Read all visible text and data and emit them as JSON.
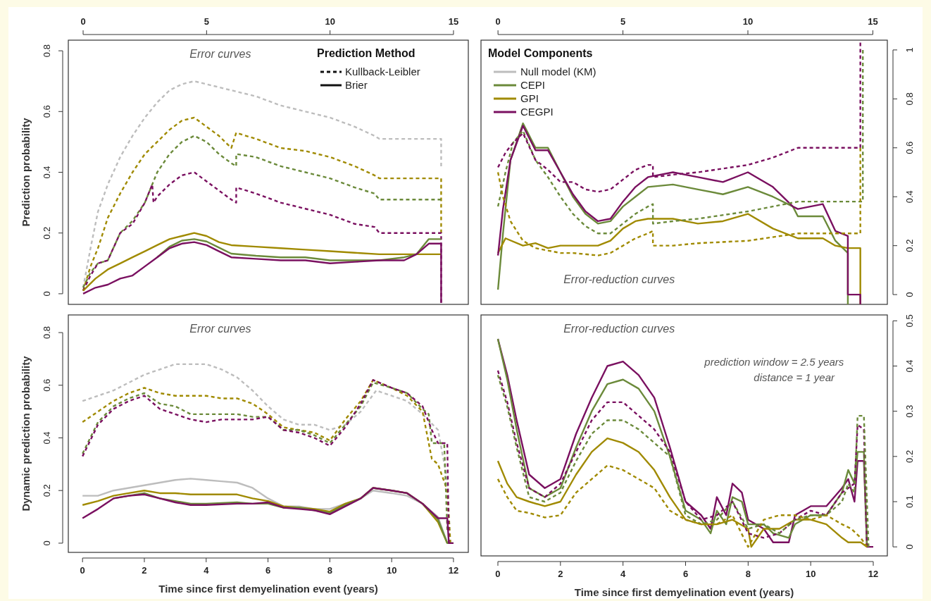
{
  "chart_data": [
    {
      "type": "line",
      "xlim": [
        -0.6,
        15.6
      ],
      "xticks": [
        0,
        5,
        10,
        15
      ],
      "ylim": [
        -0.035,
        0.835
      ],
      "yticks": [
        0,
        0.2,
        0.4,
        0.6,
        0.8
      ],
      "ylabel": "Prediction probability",
      "legend_title": "Prediction Method",
      "annotations": [
        "Error curves",
        "Kullback-Leibler",
        "Brier"
      ],
      "series": [
        {
          "color": "#bdbdbd",
          "line_style": "dashed",
          "x": [
            0,
            0.3,
            0.6,
            1,
            1.5,
            2,
            2.5,
            3,
            3.5,
            4,
            4.5,
            5,
            5.5,
            6,
            7,
            8,
            9,
            10,
            11,
            11.8,
            12,
            14.5,
            14.5
          ],
          "values": [
            0.02,
            0.15,
            0.27,
            0.36,
            0.45,
            0.52,
            0.58,
            0.63,
            0.67,
            0.69,
            0.7,
            0.69,
            0.68,
            0.67,
            0.65,
            0.62,
            0.6,
            0.58,
            0.55,
            0.52,
            0.51,
            0.51,
            0.42
          ]
        },
        {
          "color": "#a08a00",
          "line_style": "dashed",
          "x": [
            0,
            0.3,
            0.6,
            1,
            1.5,
            2,
            2.5,
            3,
            3.5,
            4,
            4.5,
            5,
            5.5,
            6,
            6.2,
            7,
            8,
            9,
            10,
            11,
            11.8,
            12,
            14.5,
            14.5
          ],
          "values": [
            0.01,
            0.09,
            0.15,
            0.25,
            0.33,
            0.4,
            0.46,
            0.5,
            0.54,
            0.57,
            0.58,
            0.55,
            0.52,
            0.48,
            0.53,
            0.51,
            0.48,
            0.47,
            0.45,
            0.42,
            0.39,
            0.38,
            0.38,
            0.2
          ]
        },
        {
          "color": "#6b8a3a",
          "line_style": "dashed",
          "x": [
            0,
            0.3,
            0.6,
            1,
            1.5,
            2,
            2.5,
            3,
            3.5,
            4,
            4.5,
            5,
            5.5,
            6,
            6.2,
            6.2,
            7,
            8,
            9,
            10,
            11,
            11.8,
            12,
            14.5
          ],
          "values": [
            0.02,
            0.07,
            0.1,
            0.11,
            0.2,
            0.24,
            0.3,
            0.4,
            0.46,
            0.5,
            0.52,
            0.5,
            0.46,
            0.43,
            0.42,
            0.46,
            0.45,
            0.42,
            0.4,
            0.38,
            0.35,
            0.33,
            0.31,
            0.31
          ]
        },
        {
          "color": "#7a1060",
          "line_style": "dashed",
          "x": [
            0,
            0.3,
            0.6,
            1,
            1.5,
            2,
            2.5,
            2.8,
            2.85,
            3,
            3.5,
            4,
            4.5,
            5,
            5.5,
            6,
            6.2,
            6.2,
            7,
            8,
            9,
            10,
            11,
            11.8,
            12,
            14.5,
            14.5
          ],
          "values": [
            0.01,
            0.06,
            0.1,
            0.11,
            0.2,
            0.23,
            0.3,
            0.36,
            0.3,
            0.32,
            0.36,
            0.39,
            0.4,
            0.37,
            0.34,
            0.31,
            0.3,
            0.35,
            0.33,
            0.3,
            0.28,
            0.26,
            0.23,
            0.22,
            0.2,
            0.2,
            -0.03
          ]
        },
        {
          "color": "#a08a00",
          "line_style": "solid",
          "x": [
            0,
            0.5,
            1,
            1.5,
            2,
            2.5,
            3,
            3.5,
            4,
            4.5,
            5,
            5.5,
            6,
            7,
            8,
            9,
            10,
            11,
            12,
            13,
            14.5
          ],
          "values": [
            0.01,
            0.05,
            0.08,
            0.1,
            0.12,
            0.14,
            0.16,
            0.18,
            0.19,
            0.2,
            0.19,
            0.17,
            0.16,
            0.155,
            0.15,
            0.145,
            0.14,
            0.135,
            0.13,
            0.13,
            0.13
          ]
        },
        {
          "color": "#6b8a3a",
          "line_style": "solid",
          "x": [
            3,
            3.5,
            4,
            4.5,
            5,
            5.5,
            6,
            7,
            8,
            9,
            10,
            11,
            12,
            13,
            13.5,
            14,
            14.5
          ],
          "values": [
            0.12,
            0.155,
            0.175,
            0.18,
            0.172,
            0.152,
            0.132,
            0.125,
            0.12,
            0.12,
            0.11,
            0.11,
            0.11,
            0.12,
            0.13,
            0.18,
            0.18
          ]
        },
        {
          "color": "#7a1060",
          "line_style": "solid",
          "x": [
            0,
            0.5,
            1,
            1.5,
            2,
            2.5,
            3,
            3.5,
            4,
            4.5,
            5,
            5.5,
            6,
            7,
            8,
            9,
            10,
            11,
            12,
            13,
            13.5,
            14,
            14.5,
            14.5
          ],
          "values": [
            0,
            0.02,
            0.03,
            0.05,
            0.06,
            0.09,
            0.12,
            0.15,
            0.165,
            0.17,
            0.16,
            0.14,
            0.12,
            0.115,
            0.11,
            0.11,
            0.1,
            0.105,
            0.11,
            0.11,
            0.13,
            0.165,
            0.165,
            -0.03
          ]
        }
      ]
    },
    {
      "type": "line",
      "xlim": [
        -0.68,
        15.58
      ],
      "xticks": [
        0,
        5,
        10,
        15
      ],
      "ylim": [
        -0.04,
        1.04
      ],
      "yticks": [
        0,
        0.2,
        0.4,
        0.6,
        0.8,
        1
      ],
      "legend": "top left",
      "legend_title": "Model Components",
      "annotations": [
        "Error-reduction curves"
      ],
      "series": [
        {
          "name": "Null model (KM)",
          "color": "#bdbdbd",
          "line_style": "solid"
        },
        {
          "name": "CEPI",
          "color": "#6b8a3a",
          "line_style": "solid",
          "x": [
            0,
            0.2,
            0.5,
            1,
            1.5,
            2,
            2.5,
            3,
            3.5,
            4,
            4.5,
            5,
            5.5,
            6,
            7,
            8,
            9,
            10,
            11,
            11.8,
            12,
            13,
            13.5,
            14,
            14
          ],
          "values": [
            0.02,
            0.25,
            0.55,
            0.7,
            0.6,
            0.6,
            0.5,
            0.4,
            0.33,
            0.29,
            0.3,
            0.36,
            0.4,
            0.44,
            0.45,
            0.43,
            0.41,
            0.44,
            0.4,
            0.36,
            0.32,
            0.32,
            0.22,
            0.17,
            -0.04
          ]
        },
        {
          "name": "GPI",
          "color": "#a08a00",
          "line_style": "solid",
          "x": [
            0,
            0.3,
            1,
            1.5,
            2,
            2.5,
            3,
            4,
            4.5,
            5,
            5.5,
            6,
            7,
            8,
            9,
            10,
            11,
            12,
            13,
            13.5,
            14,
            14.5,
            14.5
          ],
          "values": [
            0.17,
            0.23,
            0.2,
            0.21,
            0.19,
            0.2,
            0.2,
            0.2,
            0.22,
            0.27,
            0.3,
            0.31,
            0.31,
            0.29,
            0.3,
            0.33,
            0.27,
            0.23,
            0.23,
            0.2,
            0.19,
            0.19,
            -0.04
          ]
        },
        {
          "name": "CEGPI",
          "color": "#7a1060",
          "line_style": "solid",
          "x": [
            0,
            0.2,
            0.5,
            1,
            1.5,
            2,
            2.5,
            3,
            3.5,
            4,
            4.5,
            5,
            5.5,
            6,
            7,
            8,
            9,
            10,
            11,
            11.8,
            12,
            13,
            13.5,
            14,
            14,
            14.5,
            14.5
          ],
          "values": [
            0.16,
            0.35,
            0.55,
            0.69,
            0.59,
            0.59,
            0.5,
            0.41,
            0.34,
            0.3,
            0.31,
            0.38,
            0.44,
            0.48,
            0.5,
            0.48,
            0.46,
            0.5,
            0.44,
            0.36,
            0.35,
            0.37,
            0.26,
            0.24,
            0,
            0,
            -0.04
          ]
        },
        {
          "color": "#6b8a3a",
          "line_style": "dashed",
          "x": [
            0,
            0.3,
            0.6,
            1,
            1.5,
            2,
            2.5,
            3,
            3.5,
            4,
            4.5,
            5,
            5.5,
            6,
            6.2,
            6.2,
            7,
            8,
            10,
            12,
            14.6,
            14.6
          ],
          "values": [
            0.36,
            0.5,
            0.62,
            0.67,
            0.55,
            0.48,
            0.4,
            0.33,
            0.28,
            0.25,
            0.25,
            0.29,
            0.33,
            0.36,
            0.37,
            0.29,
            0.3,
            0.31,
            0.34,
            0.38,
            0.38,
            1
          ]
        },
        {
          "color": "#a08a00",
          "line_style": "dashed",
          "x": [
            0,
            0.2,
            0.5,
            1,
            1.5,
            2,
            2.5,
            3,
            4,
            4.5,
            5,
            5.5,
            6,
            6.2,
            6.2,
            7,
            8,
            10,
            12,
            14.5,
            14.5
          ],
          "values": [
            0.5,
            0.4,
            0.3,
            0.22,
            0.19,
            0.18,
            0.17,
            0.17,
            0.16,
            0.17,
            0.2,
            0.23,
            0.25,
            0.26,
            0.2,
            0.2,
            0.21,
            0.22,
            0.25,
            0.25,
            0.6
          ]
        },
        {
          "color": "#7a1060",
          "line_style": "dashed",
          "x": [
            0,
            0.3,
            0.6,
            1,
            1.5,
            2,
            2.5,
            3,
            3.5,
            4,
            4.5,
            5,
            5.5,
            6,
            6.2,
            6.2,
            7,
            8,
            10,
            11,
            12,
            14.5,
            14.5
          ],
          "values": [
            0.52,
            0.58,
            0.62,
            0.66,
            0.55,
            0.51,
            0.46,
            0.46,
            0.43,
            0.42,
            0.43,
            0.47,
            0.51,
            0.53,
            0.53,
            0.48,
            0.49,
            0.5,
            0.53,
            0.56,
            0.6,
            0.6,
            1.03
          ]
        }
      ]
    },
    {
      "type": "line",
      "xlim": [
        -0.46,
        12.48
      ],
      "xticks": [
        0,
        2,
        4,
        6,
        8,
        10,
        12
      ],
      "ylim": [
        -0.035,
        0.867
      ],
      "yticks": [
        0,
        0.2,
        0.4,
        0.6,
        0.8
      ],
      "xlabel": "Time since first demyelination event (years)",
      "ylabel": "Dynamic prediction probability",
      "annotations": [
        "Error curves"
      ],
      "series": [
        {
          "color": "#bdbdbd",
          "line_style": "dashed",
          "x": [
            0,
            0.5,
            1,
            1.5,
            2,
            2.5,
            3,
            3.5,
            4,
            4.5,
            5,
            5.5,
            6,
            6.5,
            7,
            7.5,
            8,
            8.5,
            9,
            9.5,
            10,
            10.5,
            11,
            11.5,
            11.8,
            11.9
          ],
          "values": [
            0.54,
            0.56,
            0.58,
            0.61,
            0.64,
            0.66,
            0.68,
            0.68,
            0.68,
            0.66,
            0.63,
            0.58,
            0.52,
            0.47,
            0.45,
            0.45,
            0.43,
            0.45,
            0.5,
            0.58,
            0.56,
            0.54,
            0.49,
            0.43,
            0.24,
            0
          ]
        },
        {
          "color": "#a08a00",
          "line_style": "dashed",
          "x": [
            0,
            0.5,
            1,
            1.5,
            2,
            2.5,
            3,
            3.5,
            4,
            4.5,
            5,
            5.5,
            6,
            6.5,
            7,
            7.5,
            8,
            8.5,
            9,
            9.4,
            10,
            10.5,
            11,
            11.3,
            11.5,
            11.8,
            11.9
          ],
          "values": [
            0.46,
            0.5,
            0.54,
            0.57,
            0.59,
            0.57,
            0.56,
            0.56,
            0.56,
            0.55,
            0.55,
            0.53,
            0.49,
            0.44,
            0.43,
            0.42,
            0.39,
            0.47,
            0.54,
            0.62,
            0.59,
            0.56,
            0.5,
            0.32,
            0.3,
            0.2,
            0
          ]
        },
        {
          "color": "#6b8a3a",
          "line_style": "dashed",
          "x": [
            0,
            0.5,
            1,
            1.5,
            2,
            2.5,
            3,
            3.5,
            4,
            4.5,
            5,
            5.5,
            6,
            6.5,
            7,
            7.5,
            8,
            8.5,
            9,
            9.4,
            10,
            10.5,
            11,
            11.2,
            11.3,
            11.7,
            11.8
          ],
          "values": [
            0.34,
            0.46,
            0.52,
            0.55,
            0.57,
            0.53,
            0.52,
            0.49,
            0.49,
            0.49,
            0.49,
            0.48,
            0.48,
            0.43,
            0.43,
            0.41,
            0.38,
            0.45,
            0.52,
            0.61,
            0.59,
            0.57,
            0.51,
            0.49,
            0.38,
            0.38,
            0.05
          ]
        },
        {
          "color": "#7a1060",
          "line_style": "dashed",
          "x": [
            0,
            0.5,
            1,
            1.5,
            2,
            2.5,
            3,
            3.5,
            4,
            4.5,
            5,
            5.5,
            6,
            6.5,
            7,
            7.5,
            8,
            8.5,
            9,
            9.4,
            10,
            10.5,
            11,
            11.3,
            11.5,
            11.8,
            11.85
          ],
          "values": [
            0.33,
            0.45,
            0.51,
            0.54,
            0.56,
            0.51,
            0.49,
            0.47,
            0.46,
            0.47,
            0.47,
            0.47,
            0.48,
            0.43,
            0.42,
            0.4,
            0.37,
            0.44,
            0.53,
            0.62,
            0.59,
            0.57,
            0.52,
            0.43,
            0.38,
            0.38,
            0
          ]
        },
        {
          "color": "#bdbdbd",
          "line_style": "solid",
          "x": [
            0,
            0.5,
            1,
            1.5,
            2,
            2.5,
            3,
            3.5,
            4,
            4.5,
            5,
            5.5,
            6,
            6.5,
            7,
            7.5,
            8,
            8.5,
            9,
            9.4,
            10,
            10.5,
            11,
            11.5,
            11.8
          ],
          "values": [
            0.18,
            0.18,
            0.2,
            0.21,
            0.22,
            0.23,
            0.24,
            0.245,
            0.24,
            0.235,
            0.23,
            0.21,
            0.17,
            0.14,
            0.14,
            0.13,
            0.13,
            0.15,
            0.17,
            0.2,
            0.19,
            0.18,
            0.15,
            0.1,
            0
          ]
        },
        {
          "color": "#a08a00",
          "line_style": "solid",
          "x": [
            0,
            0.5,
            1,
            1.5,
            2,
            2.5,
            3,
            3.5,
            4,
            4.5,
            5,
            5.5,
            6,
            6.5,
            7,
            7.5,
            8,
            8.5,
            9,
            9.4,
            10,
            10.5,
            11,
            11.5,
            11.8
          ],
          "values": [
            0.145,
            0.16,
            0.18,
            0.19,
            0.2,
            0.19,
            0.19,
            0.185,
            0.185,
            0.185,
            0.185,
            0.17,
            0.16,
            0.14,
            0.135,
            0.13,
            0.12,
            0.15,
            0.17,
            0.21,
            0.2,
            0.19,
            0.15,
            0.08,
            0
          ]
        },
        {
          "color": "#6b8a3a",
          "line_style": "solid",
          "x": [
            1,
            1.5,
            2,
            2.5,
            3,
            3.5,
            4,
            5,
            5.5,
            6,
            6.5,
            7,
            7.5,
            8,
            8.5,
            9,
            9.4,
            10,
            10.5,
            11,
            11.5,
            11.8,
            12
          ],
          "values": [
            0.17,
            0.18,
            0.19,
            0.17,
            0.16,
            0.15,
            0.15,
            0.155,
            0.15,
            0.15,
            0.135,
            0.135,
            0.125,
            0.115,
            0.145,
            0.17,
            0.21,
            0.2,
            0.19,
            0.15,
            0.09,
            0,
            0
          ]
        },
        {
          "color": "#7a1060",
          "line_style": "solid",
          "x": [
            0,
            0.5,
            1,
            1.5,
            2,
            2.5,
            3,
            3.5,
            4,
            5,
            5.5,
            6,
            6.5,
            7,
            7.5,
            8,
            8.5,
            9,
            9.4,
            10,
            10.5,
            11,
            11.5,
            11.8,
            11.85,
            12
          ],
          "values": [
            0.095,
            0.13,
            0.17,
            0.18,
            0.185,
            0.17,
            0.155,
            0.145,
            0.145,
            0.15,
            0.15,
            0.155,
            0.135,
            0.13,
            0.125,
            0.11,
            0.14,
            0.17,
            0.21,
            0.2,
            0.19,
            0.15,
            0.095,
            0.095,
            0,
            0
          ]
        }
      ]
    },
    {
      "type": "line",
      "xlim": [
        -0.54,
        12.45
      ],
      "xticks": [
        0,
        2,
        4,
        6,
        8,
        10,
        12
      ],
      "ylim": [
        -0.02,
        0.513
      ],
      "yticks": [
        0,
        0.1,
        0.2,
        0.3,
        0.4,
        0.5
      ],
      "xlabel": "Time since first demyelination event (years)",
      "annotations": [
        "Error-reduction curves",
        "prediction window = 2.5 years",
        "distance = 1 year"
      ],
      "series": [
        {
          "color": "#7a1060",
          "line_style": "solid",
          "x": [
            0,
            0.3,
            0.6,
            1,
            1.5,
            2,
            2.5,
            3,
            3.5,
            4,
            4.5,
            5,
            5.5,
            6,
            6.5,
            6.8,
            7,
            7.3,
            7.5,
            7.8,
            8,
            8.5,
            8.8,
            9.3,
            9.5,
            10,
            10.5,
            11,
            11.2,
            11.4,
            11.5,
            11.7,
            11.8,
            12
          ],
          "values": [
            0.46,
            0.38,
            0.28,
            0.16,
            0.13,
            0.15,
            0.25,
            0.33,
            0.4,
            0.41,
            0.38,
            0.33,
            0.22,
            0.1,
            0.07,
            0.04,
            0.11,
            0.07,
            0.14,
            0.12,
            0.06,
            0.04,
            0.01,
            0.01,
            0.07,
            0.09,
            0.09,
            0.13,
            0.15,
            0.1,
            0.19,
            0.19,
            0,
            0
          ]
        },
        {
          "color": "#6b8a3a",
          "line_style": "solid",
          "x": [
            0,
            0.3,
            0.6,
            1,
            1.5,
            2,
            2.5,
            3,
            3.5,
            4,
            4.5,
            5,
            5.5,
            6,
            6.5,
            6.8,
            7,
            7.3,
            7.5,
            7.8,
            8,
            8.5,
            8.8,
            9.3,
            9.5,
            10,
            10.5,
            11,
            11.2,
            11.4,
            11.5,
            11.7,
            11.8
          ],
          "values": [
            0.46,
            0.37,
            0.26,
            0.13,
            0.11,
            0.13,
            0.22,
            0.3,
            0.36,
            0.37,
            0.35,
            0.3,
            0.2,
            0.08,
            0.06,
            0.03,
            0.08,
            0.05,
            0.11,
            0.1,
            0.05,
            0.05,
            0.03,
            0.02,
            0.05,
            0.07,
            0.07,
            0.12,
            0.17,
            0.14,
            0.21,
            0.21,
            0
          ]
        },
        {
          "color": "#a08a00",
          "line_style": "solid",
          "x": [
            0,
            0.3,
            0.6,
            1,
            1.5,
            2,
            2.5,
            3,
            3.5,
            4,
            4.5,
            5,
            5.5,
            6,
            6.5,
            7,
            7.5,
            8,
            8.1,
            8.5,
            9,
            9.5,
            10,
            10.5,
            11,
            11.2,
            11.6,
            11.8
          ],
          "values": [
            0.19,
            0.14,
            0.11,
            0.1,
            0.09,
            0.1,
            0.16,
            0.21,
            0.24,
            0.23,
            0.21,
            0.17,
            0.11,
            0.06,
            0.05,
            0.05,
            0.06,
            0.04,
            0,
            0.04,
            0.04,
            0.06,
            0.06,
            0.05,
            0.02,
            0.01,
            0.01,
            0
          ]
        },
        {
          "color": "#7a1060",
          "line_style": "dashed",
          "x": [
            0,
            0.3,
            0.6,
            1,
            1.5,
            2,
            2.5,
            3,
            3.5,
            4,
            4.5,
            5,
            5.5,
            6,
            6.5,
            7,
            7.5,
            8,
            8.5,
            9,
            9.5,
            10,
            10.5,
            11,
            11.4,
            11.5,
            11.7,
            11.8
          ],
          "values": [
            0.39,
            0.32,
            0.23,
            0.13,
            0.11,
            0.14,
            0.21,
            0.28,
            0.32,
            0.32,
            0.29,
            0.26,
            0.21,
            0.1,
            0.06,
            0.07,
            0.1,
            0.03,
            0.02,
            0.03,
            0.06,
            0.08,
            0.07,
            0.12,
            0.14,
            0.27,
            0.26,
            0
          ]
        },
        {
          "color": "#6b8a3a",
          "line_style": "dashed",
          "x": [
            0,
            0.3,
            0.6,
            1,
            1.5,
            2,
            2.5,
            3,
            3.5,
            4,
            4.5,
            5,
            5.5,
            6,
            6.5,
            7,
            7.5,
            8,
            8.5,
            9,
            9.5,
            10,
            10.5,
            11,
            11.2,
            11.4,
            11.5,
            11.7,
            11.85
          ],
          "values": [
            0.38,
            0.31,
            0.22,
            0.11,
            0.1,
            0.12,
            0.19,
            0.25,
            0.28,
            0.28,
            0.26,
            0.23,
            0.2,
            0.07,
            0.05,
            0.06,
            0.1,
            0.04,
            0.05,
            0.03,
            0.06,
            0.07,
            0.07,
            0.1,
            0.14,
            0.12,
            0.29,
            0.29,
            0
          ]
        },
        {
          "color": "#a08a00",
          "line_style": "dashed",
          "x": [
            0,
            0.3,
            0.6,
            1,
            1.5,
            2,
            2.5,
            3,
            3.5,
            4,
            4.5,
            5,
            5.5,
            6,
            6.5,
            7,
            7.5,
            8,
            8.5,
            9,
            9.5,
            10,
            10.5,
            11,
            11.3,
            11.6,
            11.8
          ],
          "values": [
            0.15,
            0.11,
            0.08,
            0.075,
            0.065,
            0.07,
            0.12,
            0.15,
            0.18,
            0.17,
            0.15,
            0.13,
            0.08,
            0.06,
            0.05,
            0.05,
            0.07,
            0,
            0.06,
            0.07,
            0.07,
            0.06,
            0.07,
            0.05,
            0.04,
            0.02,
            0
          ]
        }
      ]
    }
  ]
}
